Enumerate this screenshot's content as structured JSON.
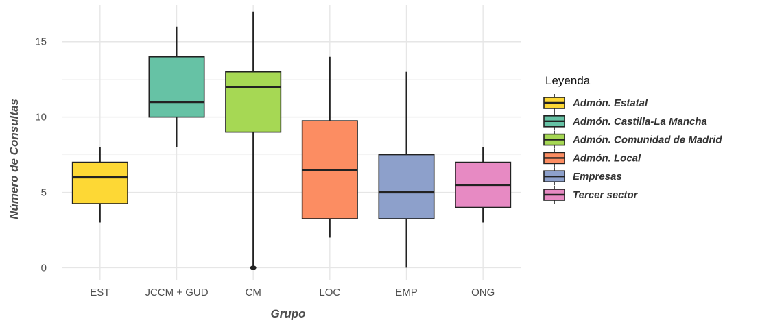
{
  "chart_data": {
    "type": "boxplot",
    "xlabel": "Grupo",
    "ylabel": "Número de Consultas",
    "ylim": [
      -0.8,
      17.4
    ],
    "yticks": [
      0,
      5,
      10,
      15
    ],
    "grid": true,
    "legend_position": "right",
    "legend_title": "Leyenda",
    "categories": [
      "EST",
      "JCCM + GUD",
      "CM",
      "LOC",
      "EMP",
      "ONG"
    ],
    "series": [
      {
        "category": "EST",
        "legend": "Admón. Estatal",
        "color": "#FDD835",
        "whisker_low": 3,
        "q1": 4.25,
        "median": 6,
        "q3": 7,
        "whisker_high": 8,
        "outliers": []
      },
      {
        "category": "JCCM + GUD",
        "legend": "Admón. Castilla-La Mancha",
        "color": "#66C2A5",
        "whisker_low": 8,
        "q1": 10,
        "median": 11,
        "q3": 14,
        "whisker_high": 16,
        "outliers": []
      },
      {
        "category": "CM",
        "legend": "Admón. Comunidad de Madrid",
        "color": "#A6D854",
        "whisker_low": 0,
        "q1": 9,
        "median": 12,
        "q3": 13,
        "whisker_high": 17,
        "outliers": [
          0
        ]
      },
      {
        "category": "LOC",
        "legend": "Admón. Local",
        "color": "#FC8D62",
        "whisker_low": 2,
        "q1": 3.25,
        "median": 6.5,
        "q3": 9.75,
        "whisker_high": 14,
        "outliers": []
      },
      {
        "category": "EMP",
        "legend": "Empresas",
        "color": "#8DA0CB",
        "whisker_low": 0,
        "q1": 3.25,
        "median": 5,
        "q3": 7.5,
        "whisker_high": 13,
        "outliers": []
      },
      {
        "category": "ONG",
        "legend": "Tercer sector",
        "color": "#E78AC3",
        "whisker_low": 3,
        "q1": 4,
        "median": 5.5,
        "q3": 7,
        "whisker_high": 8,
        "outliers": []
      }
    ]
  }
}
